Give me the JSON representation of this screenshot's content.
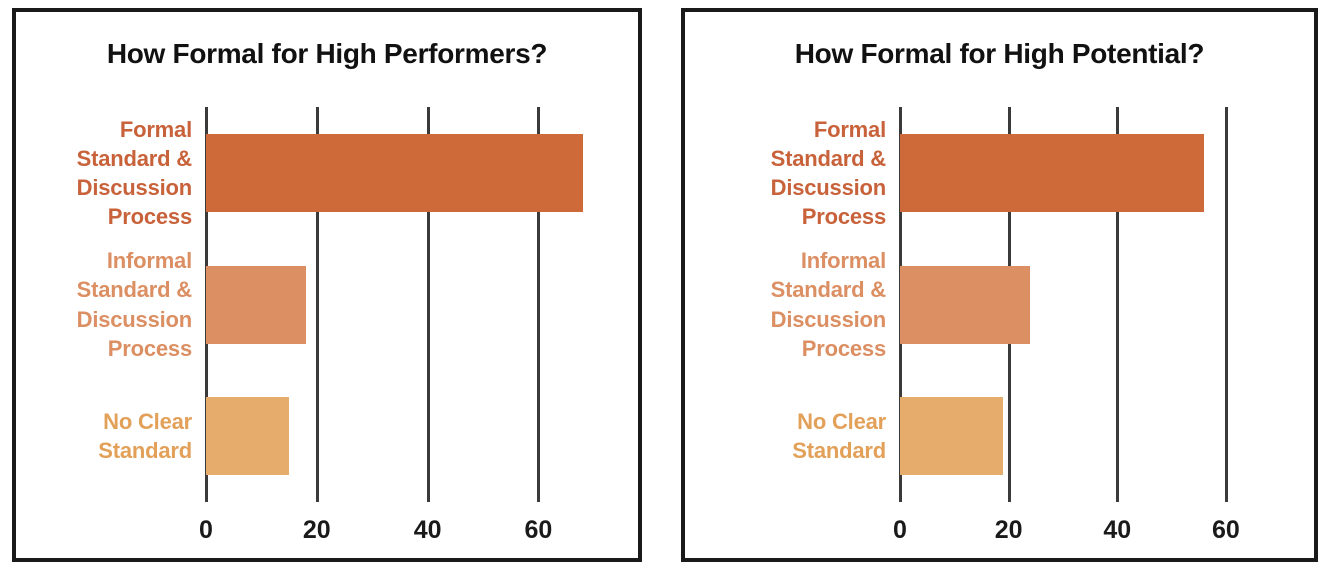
{
  "colors": {
    "panel_border": "#1a1a1a",
    "gridline": "#3a3a3a",
    "title_text": "#111111",
    "tick_text": "#1a1a1a",
    "background": "#ffffff"
  },
  "chart_data": [
    {
      "type": "bar",
      "orientation": "horizontal",
      "title": "How Formal for High Performers?",
      "categories": [
        "Formal Standard & Discussion Process",
        "Informal Standard & Discussion Process",
        "No Clear Standard"
      ],
      "values": [
        68,
        18,
        15
      ],
      "x_ticks": [
        0,
        20,
        40,
        60
      ],
      "xlim": [
        0,
        74
      ],
      "bar_colors": [
        "#CE6A39",
        "#DB8F63",
        "#E5AC6C"
      ],
      "label_colors": [
        "#C8623A",
        "#DB8F63",
        "#E2A059"
      ],
      "grid": true,
      "legend": false,
      "xlabel": "",
      "ylabel": ""
    },
    {
      "type": "bar",
      "orientation": "horizontal",
      "title": "How Formal for High Potential?",
      "categories": [
        "Formal Standard & Discussion Process",
        "Informal Standard & Discussion Process",
        "No Clear Standard"
      ],
      "values": [
        56,
        24,
        19
      ],
      "x_ticks": [
        0,
        20,
        40,
        60
      ],
      "xlim": [
        0,
        74
      ],
      "bar_colors": [
        "#CE6A39",
        "#DB8F63",
        "#E5AC6C"
      ],
      "label_colors": [
        "#C8623A",
        "#DB8F63",
        "#E2A059"
      ],
      "grid": true,
      "legend": false,
      "xlabel": "",
      "ylabel": ""
    }
  ]
}
